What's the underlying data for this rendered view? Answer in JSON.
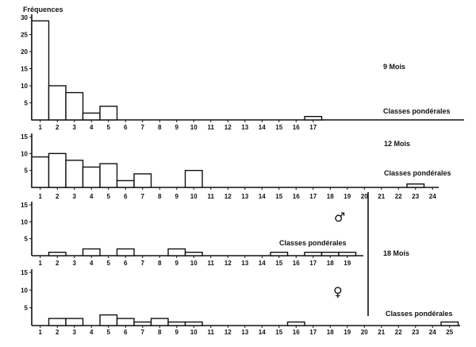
{
  "figure": {
    "ylabel": "Fréquences",
    "x_axis_label": "Classes pondérales",
    "symbols": {
      "male": "♂",
      "female": "♀"
    },
    "colors": {
      "ink": "#111111",
      "bar_fill": "#ffffff"
    }
  },
  "chart_data": [
    {
      "type": "bar",
      "title": "9 Mois",
      "xlabel": "Classes pondérales",
      "ylabel": "Fréquences",
      "ylim": [
        0,
        30
      ],
      "yticks": [
        5,
        10,
        15,
        20,
        25,
        30
      ],
      "categories": [
        "1",
        "2",
        "3",
        "4",
        "5",
        "6",
        "7",
        "8",
        "9",
        "10",
        "11",
        "12",
        "13",
        "14",
        "15",
        "16",
        "17"
      ],
      "values": [
        29,
        10,
        8,
        2,
        4,
        0,
        0,
        0,
        0,
        0,
        0,
        0,
        0,
        0,
        0,
        0,
        1
      ]
    },
    {
      "type": "bar",
      "title": "12 Mois",
      "xlabel": "Classes pondérales",
      "ylim": [
        0,
        15
      ],
      "yticks": [
        5,
        10,
        15
      ],
      "categories": [
        "1",
        "2",
        "3",
        "4",
        "5",
        "6",
        "7",
        "8",
        "9",
        "10",
        "11",
        "12",
        "13",
        "14",
        "15",
        "16",
        "17",
        "18",
        "19",
        "20",
        "21",
        "22",
        "23",
        "24"
      ],
      "values": [
        9,
        10,
        8,
        6,
        7,
        2,
        4,
        0,
        0,
        5,
        0,
        0,
        0,
        0,
        0,
        0,
        0,
        0,
        0,
        0,
        0,
        0,
        1,
        0
      ]
    },
    {
      "type": "bar",
      "title": "18 Mois",
      "series_name": "♂",
      "xlabel": "Classes pondérales",
      "ylim": [
        0,
        15
      ],
      "yticks": [
        5,
        10,
        15
      ],
      "categories": [
        "1",
        "2",
        "3",
        "4",
        "5",
        "6",
        "7",
        "8",
        "9",
        "10",
        "11",
        "12",
        "13",
        "14",
        "15",
        "16",
        "17",
        "18",
        "19"
      ],
      "values": [
        0,
        1,
        0,
        2,
        0,
        2,
        0,
        0,
        2,
        1,
        0,
        0,
        0,
        0,
        1,
        0,
        1,
        1,
        1
      ]
    },
    {
      "type": "bar",
      "title": "18 Mois",
      "series_name": "♀",
      "xlabel": "Classes pondérales",
      "ylim": [
        0,
        15
      ],
      "yticks": [
        5,
        10,
        15
      ],
      "categories": [
        "1",
        "2",
        "3",
        "4",
        "5",
        "6",
        "7",
        "8",
        "9",
        "10",
        "11",
        "12",
        "13",
        "14",
        "15",
        "16",
        "17",
        "18",
        "19",
        "20",
        "21",
        "22",
        "23",
        "24",
        "25"
      ],
      "values": [
        0,
        2,
        2,
        0,
        3,
        2,
        1,
        2,
        1,
        1,
        0,
        0,
        0,
        0,
        0,
        1,
        0,
        0,
        0,
        0,
        0,
        0,
        0,
        0,
        1
      ]
    }
  ]
}
